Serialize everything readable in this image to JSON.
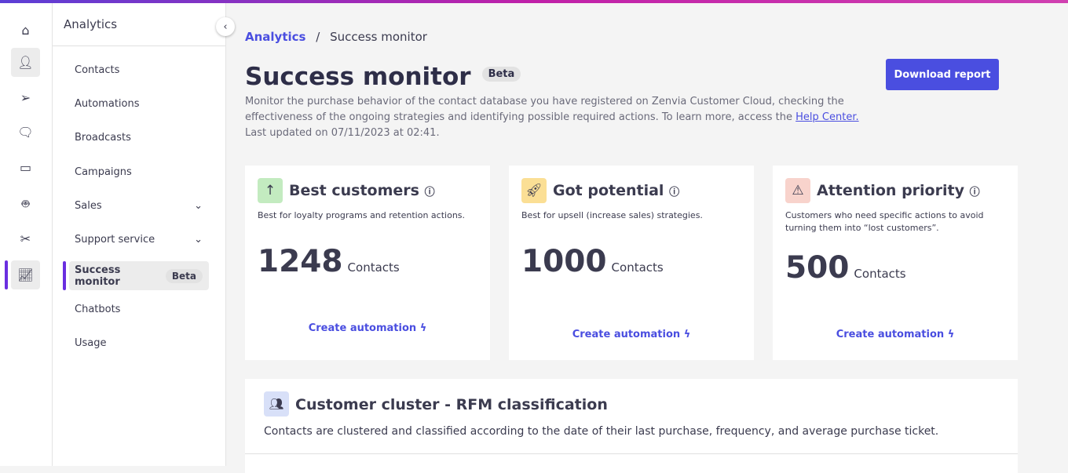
{
  "rail": {
    "icons": [
      "home-icon",
      "user-icon",
      "send-icon",
      "chat-icon",
      "ticket-icon",
      "robot-icon",
      "tools-icon",
      "chart-icon"
    ]
  },
  "sidebar": {
    "title": "Analytics",
    "items": [
      {
        "label": "Contacts"
      },
      {
        "label": "Automations"
      },
      {
        "label": "Broadcasts"
      },
      {
        "label": "Campaigns"
      },
      {
        "label": "Sales",
        "expandable": true
      },
      {
        "label": "Support service",
        "expandable": true
      },
      {
        "label": "Success monitor",
        "badge": "Beta",
        "selected": true
      },
      {
        "label": "Chatbots"
      },
      {
        "label": "Usage"
      }
    ]
  },
  "breadcrumb": {
    "parent": "Analytics",
    "sep": "/",
    "current": "Success monitor"
  },
  "header": {
    "title": "Success monitor",
    "badge": "Beta",
    "desc1": "Monitor the purchase behavior of the contact database you have registered on Zenvia Customer Cloud, checking the effectiveness of the ongoing strategies and identifying possible required actions. To learn more, access the ",
    "link": "Help Center.",
    "updated": "Last updated on 07/11/2023 at 02:41.",
    "download": "Download report"
  },
  "cards": [
    {
      "title": "Best customers",
      "desc": "Best for loyalty programs and retention actions.",
      "count": "1248",
      "unit": "Contacts",
      "action": "Create automation",
      "color": "#c3ebc0"
    },
    {
      "title": "Got potential",
      "desc": "Best for upsell (increase sales) strategies.",
      "count": "1000",
      "unit": "Contacts",
      "action": "Create automation",
      "color": "#fbdf95"
    },
    {
      "title": "Attention priority",
      "desc": "Customers who need specific actions to avoid turning them into “lost customers”.",
      "count": "500",
      "unit": "Contacts",
      "action": "Create automation",
      "color": "#f8d3cc"
    }
  ],
  "rfm": {
    "title": "Customer cluster - RFM classification",
    "desc": "Contacts are clustered and classified according to the date of their last purchase, frequency, and average purchase ticket."
  },
  "colors": {
    "accent": "#4a4ee0",
    "active": "#6a2ee0"
  }
}
